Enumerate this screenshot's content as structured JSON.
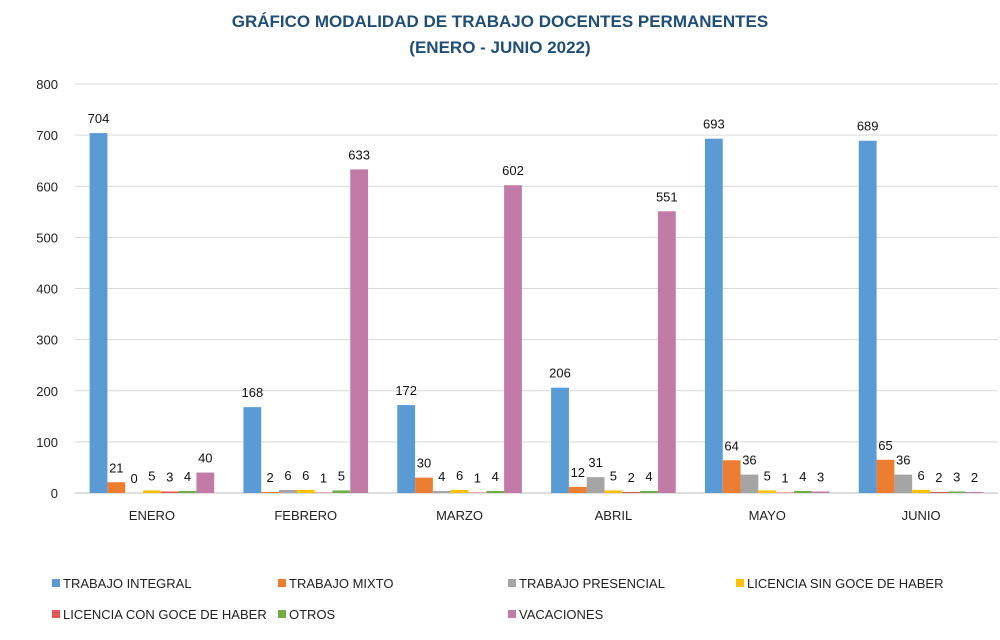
{
  "chart_data": {
    "type": "bar",
    "title": [
      "GRÁFICO MODALIDAD DE TRABAJO DOCENTES PERMANENTES",
      "(ENERO - JUNIO 2022)"
    ],
    "xlabel": "",
    "ylabel": "",
    "ylim": [
      0,
      800
    ],
    "yticks": [
      0,
      100,
      200,
      300,
      400,
      500,
      600,
      700,
      800
    ],
    "grid": true,
    "legend_position": "bottom",
    "categories": [
      "ENERO",
      "FEBRERO",
      "MARZO",
      "ABRIL",
      "MAYO",
      "JUNIO"
    ],
    "series": [
      {
        "name": "TRABAJO INTEGRAL",
        "color": "#5b9bd5",
        "values": [
          704,
          168,
          172,
          206,
          693,
          689
        ]
      },
      {
        "name": "TRABAJO MIXTO",
        "color": "#ed7d31",
        "values": [
          21,
          2,
          30,
          12,
          64,
          65
        ]
      },
      {
        "name": "TRABAJO PRESENCIAL",
        "color": "#a5a5a5",
        "values": [
          0,
          6,
          4,
          31,
          36,
          36
        ]
      },
      {
        "name": "LICENCIA SIN GOCE DE HABER",
        "color": "#ffc000",
        "values": [
          5,
          6,
          6,
          5,
          5,
          6
        ]
      },
      {
        "name": "LICENCIA CON GOCE DE HABER",
        "color": "#e15759",
        "values": [
          3,
          1,
          1,
          2,
          1,
          2
        ]
      },
      {
        "name": "OTROS",
        "color": "#70ad47",
        "values": [
          4,
          5,
          4,
          4,
          4,
          3
        ]
      },
      {
        "name": "VACACIONES",
        "color": "#c17ba6",
        "values": [
          40,
          633,
          602,
          551,
          3,
          2
        ]
      }
    ],
    "data_labels": [
      [
        "704",
        "21",
        "0",
        "5",
        "3",
        "4",
        "40"
      ],
      [
        "168",
        "2",
        "6",
        "6",
        "1",
        "5",
        "633"
      ],
      [
        "172",
        "30",
        "4",
        "6",
        "1",
        "4",
        "602"
      ],
      [
        "206",
        "12",
        "31",
        "5",
        "2",
        "4",
        "551"
      ],
      [
        "693",
        "64",
        "36",
        "5",
        "1",
        "4",
        "3"
      ],
      [
        "689",
        "65",
        "36",
        "6",
        "2",
        "3",
        "2"
      ]
    ]
  }
}
